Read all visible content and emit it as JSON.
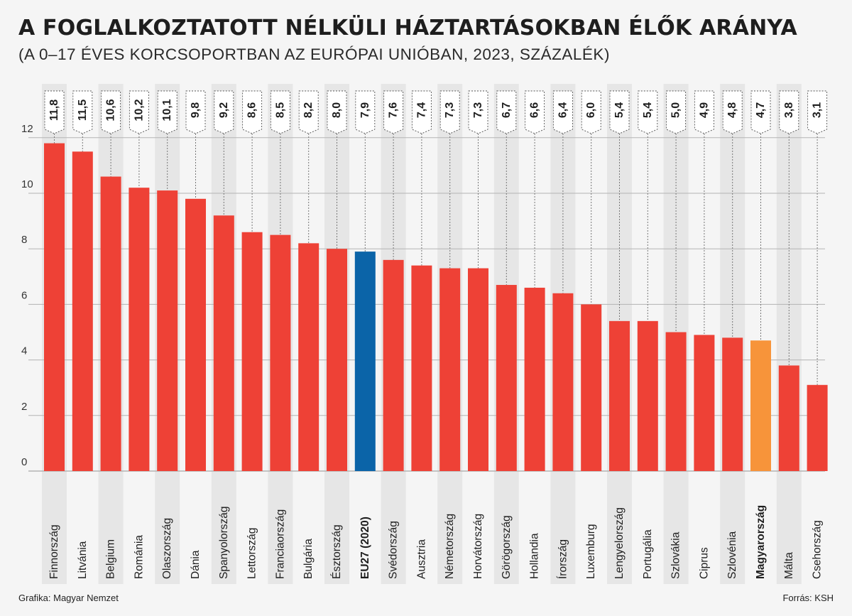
{
  "header": {
    "title": "A FOGLALKOZTATOTT NÉLKÜLI HÁZTARTÁSOKBAN ÉLŐK ARÁNYA",
    "subtitle": "(A 0–17 ÉVES KORCSOPORTBAN AZ EURÓPAI UNIÓBAN, 2023, SZÁZALÉK)"
  },
  "footer": {
    "credit": "Grafika: Magyar Nemzet",
    "source": "Forrás: KSH"
  },
  "colors": {
    "bar": "#ee4136",
    "eu_highlight": "#0b64a8",
    "hungary_highlight": "#f7943a",
    "stripe": "#e6e6e6",
    "grid": "#b4b4b4",
    "text": "#1e1e1e"
  },
  "chart_data": {
    "type": "bar",
    "title": "A FOGLALKOZTATOTT NÉLKÜLI HÁZTARTÁSOKBAN ÉLŐK ARÁNYA",
    "subtitle": "(A 0–17 ÉVES KORCSOPORTBAN AZ EURÓPAI UNIÓBAN, 2023, SZÁZALÉK)",
    "xlabel": "",
    "ylabel": "",
    "ylim": [
      0,
      12
    ],
    "yticks": [
      0,
      2,
      4,
      6,
      8,
      10,
      12
    ],
    "grid": true,
    "categories": [
      "Finnország",
      "Litvánia",
      "Belgium",
      "Románia",
      "Olaszország",
      "Dánia",
      "Spanyolország",
      "Lettország",
      "Franciaország",
      "Bulgária",
      "Észtország",
      "EU27 (2020)",
      "Svédország",
      "Ausztria",
      "Németország",
      "Horvátország",
      "Görögország",
      "Hollandia",
      "Írország",
      "Luxemburg",
      "Lengyelország",
      "Portugália",
      "Szlovákia",
      "Ciprus",
      "Szlovénia",
      "Magyarország",
      "Málta",
      "Csehország"
    ],
    "values": [
      11.8,
      11.5,
      10.6,
      10.2,
      10.1,
      9.8,
      9.2,
      8.6,
      8.5,
      8.2,
      8.0,
      7.9,
      7.6,
      7.4,
      7.3,
      7.3,
      6.7,
      6.6,
      6.4,
      6.0,
      5.4,
      5.4,
      5.0,
      4.9,
      4.8,
      4.7,
      3.8,
      3.1
    ],
    "value_labels": [
      "11,8",
      "11,5",
      "10,6",
      "10,2",
      "10,1",
      "9,8",
      "9,2",
      "8,6",
      "8,5",
      "8,2",
      "8,0",
      "7,9",
      "7,6",
      "7,4",
      "7,3",
      "7,3",
      "6,7",
      "6,6",
      "6,4",
      "6,0",
      "5,4",
      "5,4",
      "5,0",
      "4,9",
      "4,8",
      "4,7",
      "3,8",
      "3,1"
    ],
    "highlight": {
      "EU27 (2020)": "eu_highlight",
      "Magyarország": "hungary_highlight"
    },
    "bold_labels": [
      "EU27 (2020)",
      "Magyarország"
    ]
  }
}
